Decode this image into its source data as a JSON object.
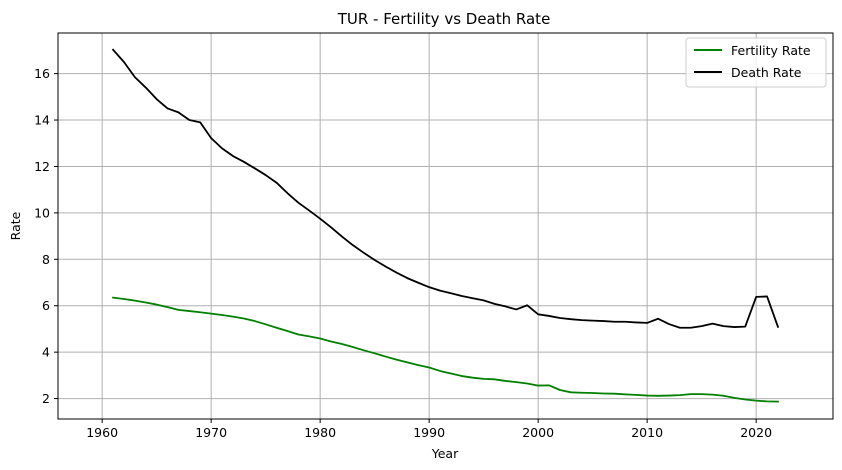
{
  "chart_data": {
    "type": "line",
    "title": "TUR - Fertility vs Death Rate",
    "xlabel": "Year",
    "ylabel": "Rate",
    "xlim": [
      1955.95,
      2027.05
    ],
    "ylim": [
      1.12,
      17.75
    ],
    "xticks": [
      1960,
      1970,
      1980,
      1990,
      2000,
      2010,
      2020
    ],
    "yticks": [
      2,
      4,
      6,
      8,
      10,
      12,
      14,
      16
    ],
    "grid": true,
    "legend": "top-right",
    "x": [
      1961,
      1962,
      1963,
      1964,
      1965,
      1966,
      1967,
      1968,
      1969,
      1970,
      1971,
      1972,
      1973,
      1974,
      1975,
      1976,
      1977,
      1978,
      1979,
      1980,
      1981,
      1982,
      1983,
      1984,
      1985,
      1986,
      1987,
      1988,
      1989,
      1990,
      1991,
      1992,
      1993,
      1994,
      1995,
      1996,
      1997,
      1998,
      1999,
      2000,
      2001,
      2002,
      2003,
      2004,
      2005,
      2006,
      2007,
      2008,
      2009,
      2010,
      2011,
      2012,
      2013,
      2014,
      2015,
      2016,
      2017,
      2018,
      2019,
      2020,
      2021,
      2022
    ],
    "series": [
      {
        "name": "Fertility Rate",
        "color": "#008000",
        "values": [
          6.35,
          6.29,
          6.22,
          6.14,
          6.05,
          5.94,
          5.82,
          5.77,
          5.72,
          5.66,
          5.6,
          5.53,
          5.45,
          5.34,
          5.2,
          5.05,
          4.91,
          4.76,
          4.68,
          4.59,
          4.46,
          4.35,
          4.22,
          4.08,
          3.95,
          3.81,
          3.68,
          3.56,
          3.44,
          3.34,
          3.19,
          3.08,
          2.97,
          2.9,
          2.85,
          2.83,
          2.76,
          2.71,
          2.65,
          2.56,
          2.57,
          2.37,
          2.27,
          2.25,
          2.24,
          2.22,
          2.21,
          2.18,
          2.16,
          2.13,
          2.12,
          2.13,
          2.15,
          2.19,
          2.19,
          2.17,
          2.12,
          2.03,
          1.96,
          1.91,
          1.88,
          1.87
        ]
      },
      {
        "name": "Death Rate",
        "color": "#000000",
        "values": [
          17.03,
          16.5,
          15.85,
          15.4,
          14.9,
          14.5,
          14.33,
          14.0,
          13.9,
          13.22,
          12.78,
          12.45,
          12.2,
          11.92,
          11.63,
          11.3,
          10.85,
          10.44,
          10.1,
          9.75,
          9.38,
          8.98,
          8.61,
          8.28,
          7.97,
          7.69,
          7.43,
          7.19,
          6.99,
          6.8,
          6.65,
          6.54,
          6.42,
          6.32,
          6.23,
          6.08,
          5.97,
          5.84,
          6.02,
          5.63,
          5.56,
          5.47,
          5.42,
          5.38,
          5.36,
          5.34,
          5.31,
          5.31,
          5.28,
          5.26,
          5.44,
          5.21,
          5.05,
          5.05,
          5.12,
          5.23,
          5.12,
          5.08,
          5.1,
          6.38,
          6.4,
          5.09
        ]
      }
    ]
  }
}
